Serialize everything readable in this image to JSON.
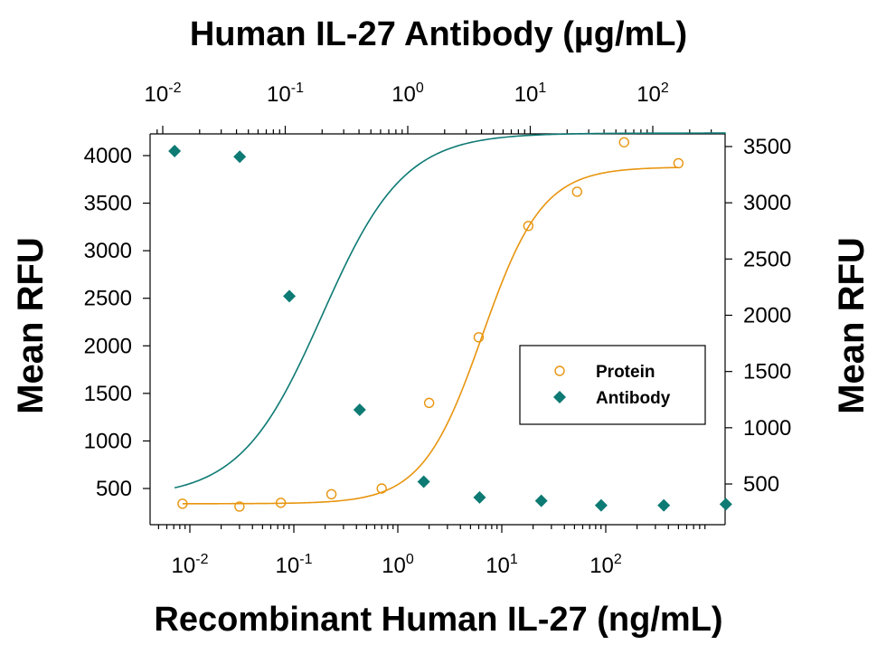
{
  "chart_data": {
    "type": "scatter",
    "title_top": "Human IL-27 Antibody (µg/mL)",
    "xlabel": "Recombinant Human IL-27 (ng/mL)",
    "ylabel_left": "Mean RFU",
    "ylabel_right": "Mean RFU",
    "x_scale": "log",
    "x_bottom_ticks": [
      0.01,
      0.1,
      1,
      10,
      100
    ],
    "x_top_ticks": [
      0.01,
      0.1,
      1,
      10,
      100
    ],
    "y_left_ticks": [
      500,
      1000,
      1500,
      2000,
      2500,
      3000,
      3500,
      4000
    ],
    "y_right_ticks": [
      500,
      1000,
      1500,
      2000,
      2500,
      3000,
      3500
    ],
    "legend_position": "center-right",
    "series": [
      {
        "name": "Protein",
        "axis": "bottom-left",
        "marker": "open-circle",
        "color": "#E8950F",
        "x": [
          0.0085,
          0.03,
          0.075,
          0.23,
          0.7,
          2.0,
          6.0,
          18.0,
          53.0,
          150.0,
          500.0
        ],
        "y": [
          340,
          310,
          350,
          440,
          500,
          1400,
          2090,
          3260,
          3620,
          4140,
          3920
        ],
        "fit": {
          "bottom": 340,
          "top": 3880,
          "ec50": 6.5,
          "hill": 1.5
        }
      },
      {
        "name": "Antibody",
        "axis": "top-right",
        "marker": "filled-diamond",
        "color": "#0E7A74",
        "x": [
          0.0125,
          0.0425,
          0.108,
          0.405,
          1.35,
          3.86,
          12.3,
          37.9,
          123.0,
          395.0
        ],
        "y": [
          3460,
          3410,
          2170,
          1160,
          520,
          380,
          350,
          310,
          310,
          320
        ],
        "fit": {
          "bottom": 380,
          "top": 3620,
          "ec50": 0.2,
          "hill": 1.3
        }
      }
    ]
  }
}
